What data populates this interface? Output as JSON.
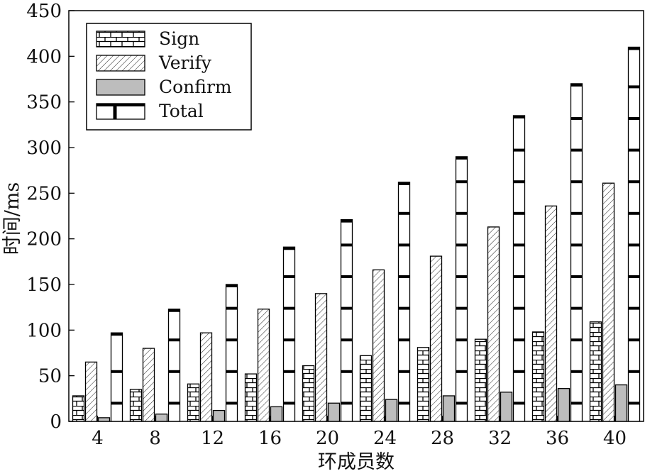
{
  "chart_data": {
    "type": "bar",
    "title": "",
    "xlabel": "环成员数",
    "ylabel": "时间/ms",
    "ylim": [
      0,
      450
    ],
    "yticks": [
      0,
      50,
      100,
      150,
      200,
      250,
      300,
      350,
      400,
      450
    ],
    "categories": [
      "4",
      "8",
      "12",
      "16",
      "20",
      "24",
      "28",
      "32",
      "36",
      "40"
    ],
    "series": [
      {
        "name": "Sign",
        "values": [
          28,
          35,
          41,
          52,
          61,
          72,
          81,
          90,
          98,
          109
        ]
      },
      {
        "name": "Verify",
        "values": [
          65,
          80,
          97,
          123,
          140,
          166,
          181,
          213,
          236,
          261
        ]
      },
      {
        "name": "Confirm",
        "values": [
          4,
          8,
          12,
          16,
          20,
          24,
          28,
          32,
          36,
          40
        ]
      },
      {
        "name": "Total",
        "values": [
          97,
          123,
          150,
          191,
          221,
          262,
          290,
          335,
          370,
          410
        ]
      }
    ],
    "legend": "top-left",
    "grid": false
  }
}
